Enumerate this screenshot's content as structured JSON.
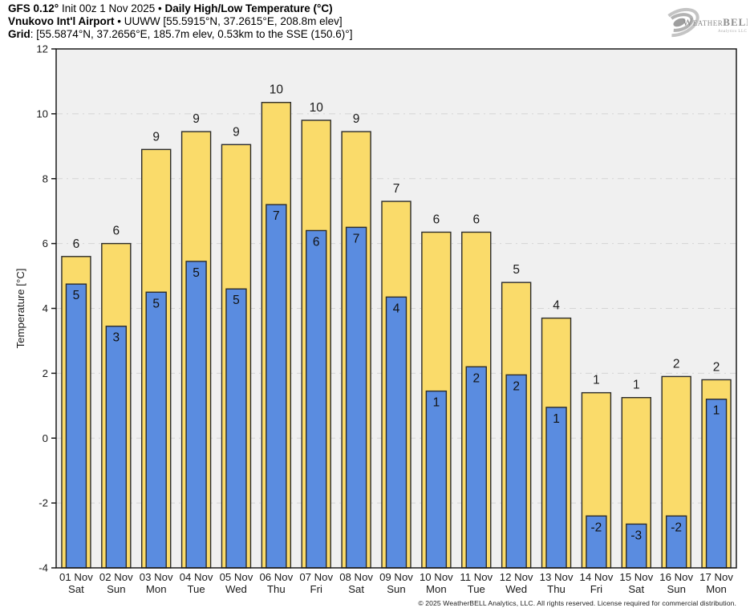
{
  "header": {
    "l1_bold": "GFS 0.12°",
    "l1_regular": " Init 00z 1 Nov 2025 • ",
    "l1_bold2": "Daily High/Low Temperature (°C)",
    "l2_bold": "Vnukovo Int'l Airport",
    "l2_regular": " • UUWW [55.5915°N, 37.2615°E, 208.8m elev]",
    "l3_bold": "Grid",
    "l3_regular": ": [55.5874°N, 37.2656°E, 185.7m elev, 0.53km to the SSE (150.6)°]"
  },
  "logo": {
    "brand_weather": "Weather",
    "brand_bell": "BELL",
    "subtitle": "Analytics LLC"
  },
  "footer": {
    "copyright": "© 2025 WeatherBELL Analytics, LLC. All rights reserved. License required for commercial distribution."
  },
  "chart_data": {
    "type": "bar",
    "title": "Daily High/Low Temperature (°C)",
    "ylabel": "Temperature [°C]",
    "ylim": [
      -4,
      12
    ],
    "ytick_step": 2,
    "grid": true,
    "legend_position": "none",
    "plot_bg": "#f0f0f0",
    "grid_color": "#d4d4d4",
    "axis_color": "#1a1a1a",
    "bar_stroke": "#2b2b2b",
    "categories": [
      "01 Nov",
      "02 Nov",
      "03 Nov",
      "04 Nov",
      "05 Nov",
      "06 Nov",
      "07 Nov",
      "08 Nov",
      "09 Nov",
      "10 Nov",
      "11 Nov",
      "12 Nov",
      "13 Nov",
      "14 Nov",
      "15 Nov",
      "16 Nov",
      "17 Nov"
    ],
    "weekdays": [
      "Sat",
      "Sun",
      "Mon",
      "Tue",
      "Wed",
      "Thu",
      "Fri",
      "Sat",
      "Sun",
      "Mon",
      "Tue",
      "Wed",
      "Thu",
      "Fri",
      "Sat",
      "Sun",
      "Mon"
    ],
    "series": [
      {
        "name": "High",
        "color": "#fadb6a",
        "values": [
          5.6,
          6.0,
          8.9,
          9.45,
          9.05,
          10.35,
          9.8,
          9.45,
          7.3,
          6.35,
          6.35,
          4.8,
          3.7,
          1.4,
          1.25,
          1.9,
          1.8
        ],
        "labels": [
          "6",
          "6",
          "9",
          "9",
          "9",
          "10",
          "10",
          "9",
          "7",
          "6",
          "6",
          "5",
          "4",
          "1",
          "1",
          "2",
          "2"
        ]
      },
      {
        "name": "Low",
        "color": "#5a8ce0",
        "values": [
          4.75,
          3.45,
          4.5,
          5.45,
          4.6,
          7.2,
          6.4,
          6.5,
          4.35,
          1.45,
          2.2,
          1.95,
          0.95,
          -2.4,
          -2.65,
          -2.4,
          1.2
        ],
        "labels": [
          "5",
          "3",
          "5",
          "5",
          "5",
          "7",
          "6",
          "7",
          "4",
          "1",
          "2",
          "2",
          "1",
          "-2",
          "-3",
          "-2",
          "1"
        ]
      }
    ],
    "baseline": -4
  }
}
